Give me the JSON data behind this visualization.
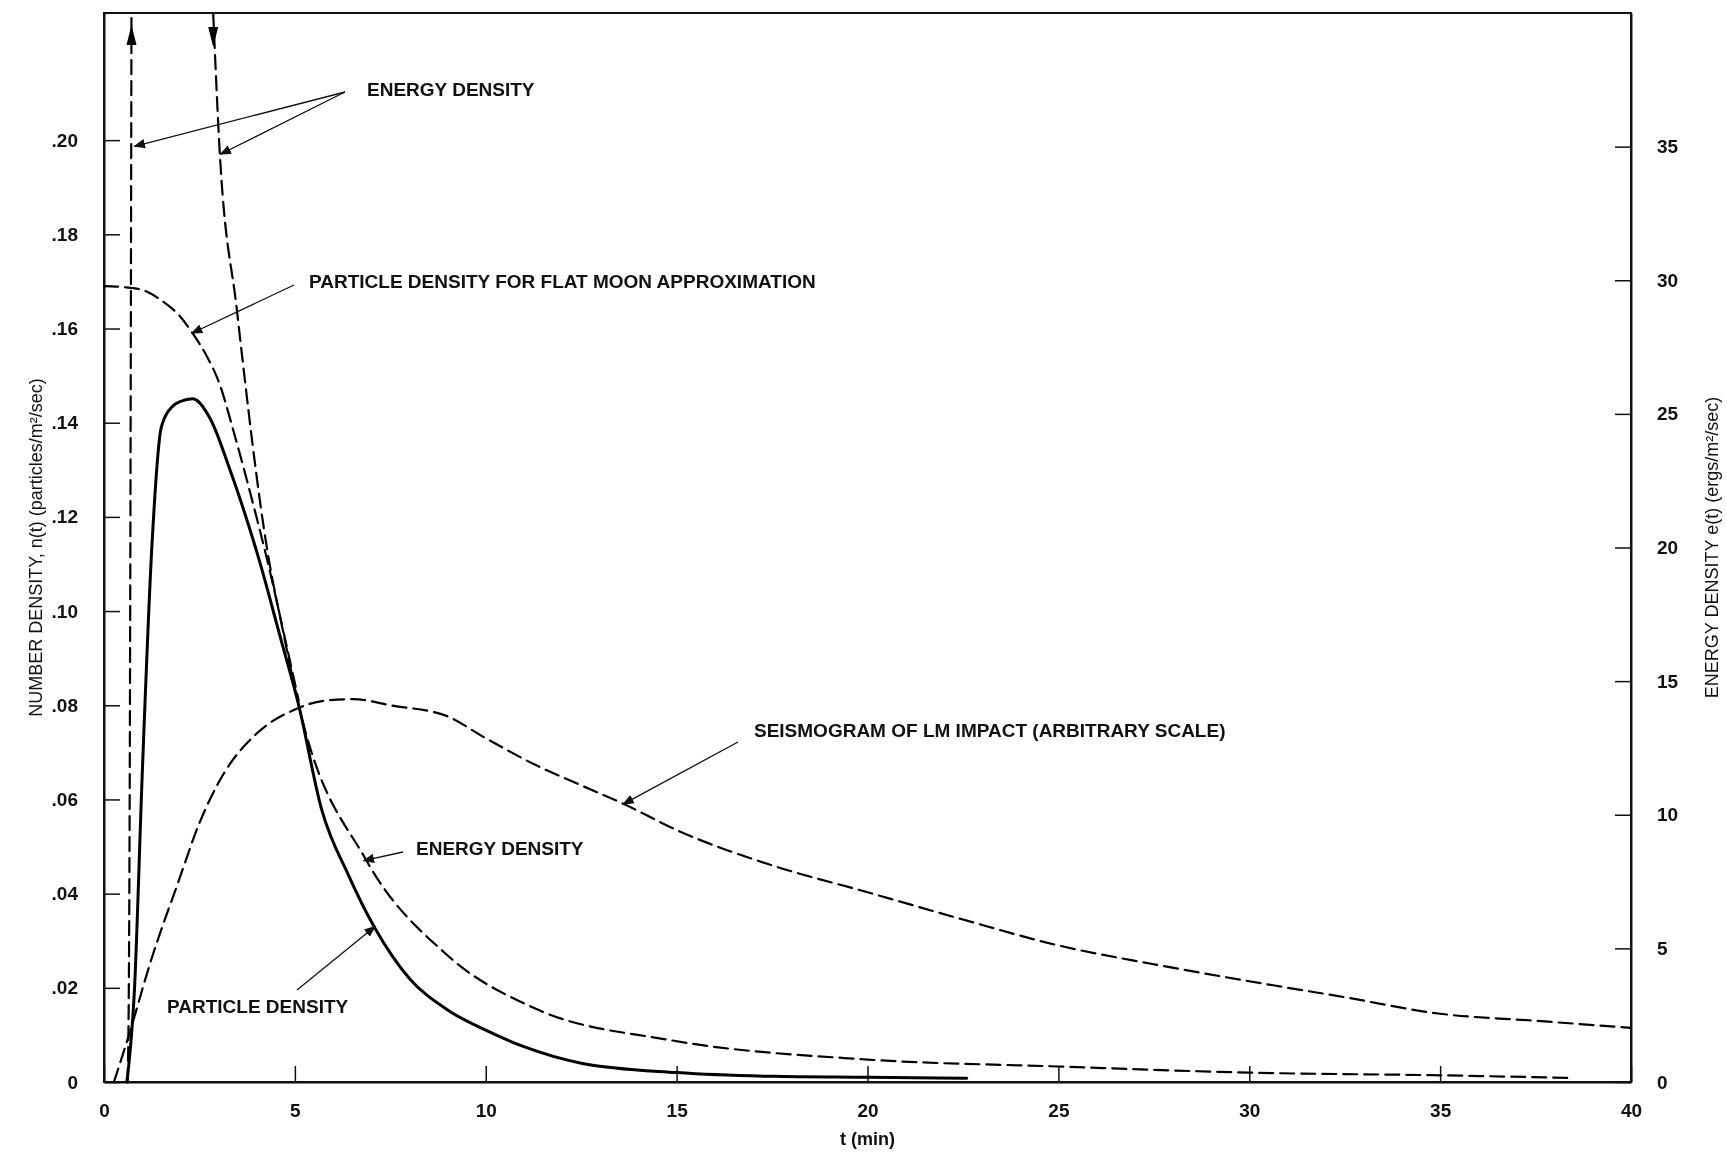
{
  "chart_data": {
    "type": "line",
    "xlabel": "t (min)",
    "ylabel": "NUMBER DENSITY, n(t)  (particles/m²/sec)",
    "y2label": "ENERGY DENSITY e(t)  (ergs/m²/sec)",
    "xlim": [
      0,
      40
    ],
    "xticks": [
      0,
      5,
      10,
      15,
      20,
      25,
      30,
      35,
      40
    ],
    "ylim": [
      0,
      0.227
    ],
    "yticks": [
      0,
      {
        "value": 0.02,
        "label": ".02"
      },
      {
        "value": 0.04,
        "label": ".04"
      },
      {
        "value": 0.06,
        "label": ".06"
      },
      {
        "value": 0.08,
        "label": ".08"
      },
      {
        "value": 0.1,
        "label": ".10"
      },
      {
        "value": 0.12,
        "label": ".12"
      },
      {
        "value": 0.14,
        "label": ".14"
      },
      {
        "value": 0.16,
        "label": ".16"
      },
      {
        "value": 0.18,
        "label": ".18"
      },
      {
        "value": 0.2,
        "label": ".20"
      }
    ],
    "y2lim": [
      0,
      40
    ],
    "y2ticks": [
      0,
      5,
      10,
      15,
      20,
      25,
      30,
      35
    ],
    "grid": false,
    "series": [
      {
        "color": "#000000",
        "line_style": "solid",
        "x": [
          0.6,
          0.8,
          1.0,
          1.26,
          1.5,
          1.8,
          2.0,
          2.32,
          2.78,
          3.3,
          4.07,
          4.6,
          5.1,
          5.7,
          6.4,
          7.11,
          8.0,
          8.98,
          10,
          11,
          12.5,
          15,
          17.5,
          20,
          22.6
        ],
        "values": [
          0,
          0.02,
          0.065,
          0.1146,
          0.139,
          0.1435,
          0.1445,
          0.1451,
          0.1409,
          0.13,
          0.1107,
          0.095,
          0.08,
          0.0579,
          0.044,
          0.0325,
          0.022,
          0.0154,
          0.011,
          0.0075,
          0.004,
          0.002,
          0.0012,
          0.001,
          0.0008
        ]
      },
      {
        "color": "#000000",
        "line_style": "dashed",
        "x": [
          0,
          0.5,
          1,
          1.5,
          2,
          2.32,
          2.7,
          3.02,
          3.4,
          3.84,
          4.3,
          4.8,
          5.1
        ],
        "values": [
          0.169,
          0.1688,
          0.1682,
          0.166,
          0.1625,
          0.159,
          0.154,
          0.1484,
          0.138,
          0.1248,
          0.11,
          0.092,
          0.081
        ]
      },
      {
        "color": "#000000",
        "line_style": "dashed",
        "x": [
          0.26,
          0.68,
          1.2,
          1.96,
          2.5,
          3.13,
          4,
          5,
          5.8,
          6.52,
          7.5,
          8.98,
          10,
          11.31,
          12.5,
          13.65,
          15,
          17.5,
          20,
          22.5,
          25,
          27.5,
          30,
          32.5,
          35,
          37.5,
          40
        ],
        "values": [
          0,
          0.0107,
          0.025,
          0.0428,
          0.055,
          0.0654,
          0.074,
          0.0791,
          0.081,
          0.0813,
          0.08,
          0.0777,
          0.073,
          0.0673,
          0.063,
          0.0589,
          0.0535,
          0.046,
          0.0403,
          0.0345,
          0.029,
          0.025,
          0.0214,
          0.018,
          0.0145,
          0.013,
          0.0115
        ]
      },
      {
        "color": "#000000",
        "line_style": "dashed",
        "axis": "y2",
        "x": [
          0.62,
          0.66,
          0.72,
          1.8,
          2.86,
          3.02,
          3.48,
          4.3,
          4.7,
          5.1,
          6.87,
          8.98,
          11.31,
          14.82,
          20,
          25,
          30,
          35,
          38.5
        ],
        "values": [
          0,
          5.9,
          40,
          null,
          40,
          35.1,
          28.9,
          19.7,
          16.8,
          14.1,
          8.3,
          4.76,
          2.74,
          1.57,
          0.84,
          0.58,
          0.35,
          0.25,
          0.15
        ]
      }
    ],
    "annotations": [
      {
        "text": "ENERGY DENSITY",
        "x": 3.05,
        "y": 0.197
      },
      {
        "text": "PARTICLE DENSITY FOR FLAT MOON APPROXIMATION",
        "x": 2.3,
        "y": 0.159
      },
      {
        "text": "SEISMOGRAM OF LM IMPACT (ARBITRARY SCALE)",
        "x": 13.6,
        "y": 0.059
      },
      {
        "text": "ENERGY DENSITY",
        "x": 6.8,
        "y": 0.047
      },
      {
        "text": "PARTICLE DENSITY",
        "x": 7.1,
        "y": 0.033
      }
    ]
  }
}
